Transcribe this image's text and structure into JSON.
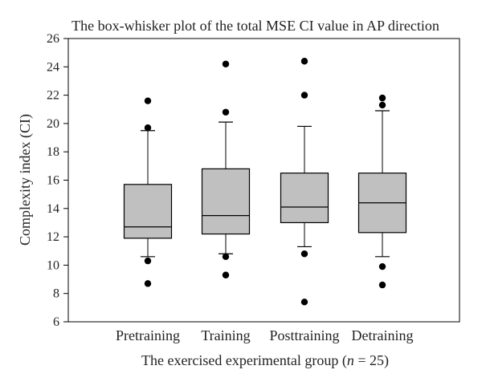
{
  "chart_data": {
    "type": "box",
    "title": "The box-whisker plot of the total MSE CI value in AP direction",
    "xlabel_prefix": "The exercised experimental group (",
    "xlabel_italic": "n",
    "xlabel_suffix": " = 25)",
    "ylabel": "Complexity index (CI)",
    "ylim": [
      6,
      26
    ],
    "yticks": [
      6,
      8,
      10,
      12,
      14,
      16,
      18,
      20,
      22,
      24,
      26
    ],
    "grid": false,
    "legend": "none",
    "box_color": "#c0c0c0",
    "series": [
      {
        "category": "Pretraining",
        "q1": 11.9,
        "median": 12.7,
        "q3": 15.7,
        "whisker_low": 10.6,
        "whisker_high": 19.5,
        "outliers": [
          21.6,
          19.7,
          10.3,
          8.7
        ]
      },
      {
        "category": "Training",
        "q1": 12.2,
        "median": 13.5,
        "q3": 16.8,
        "whisker_low": 10.8,
        "whisker_high": 20.1,
        "outliers": [
          24.2,
          20.8,
          10.6,
          9.3
        ]
      },
      {
        "category": "Posttraining",
        "q1": 13.0,
        "median": 14.1,
        "q3": 16.5,
        "whisker_low": 11.3,
        "whisker_high": 19.8,
        "outliers": [
          24.4,
          22.0,
          10.8,
          7.4
        ]
      },
      {
        "category": "Detraining",
        "q1": 12.3,
        "median": 14.4,
        "q3": 16.5,
        "whisker_low": 10.6,
        "whisker_high": 20.9,
        "outliers": [
          21.8,
          21.3,
          9.9,
          8.6
        ]
      }
    ]
  }
}
